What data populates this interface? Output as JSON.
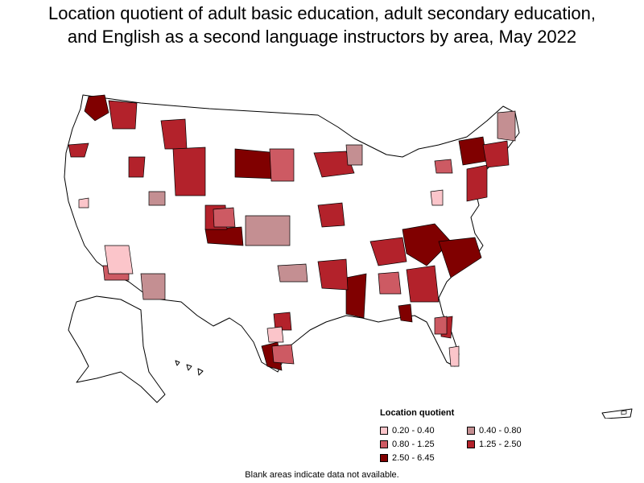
{
  "title": {
    "line1": "Location quotient of adult basic education, adult secondary education,",
    "line2": "and English as a second language instructors by area, May 2022"
  },
  "legend": {
    "title": "Location quotient",
    "items": [
      {
        "label": "0.20 - 0.40",
        "color": "#fbc5ca"
      },
      {
        "label": "0.40 - 0.80",
        "color": "#c48f92"
      },
      {
        "label": "0.80 - 1.25",
        "color": "#cd5a63"
      },
      {
        "label": "1.25 - 2.50",
        "color": "#b3222b"
      },
      {
        "label": "2.50 - 6.45",
        "color": "#800000"
      }
    ]
  },
  "note": "Blank areas indicate data not available."
}
